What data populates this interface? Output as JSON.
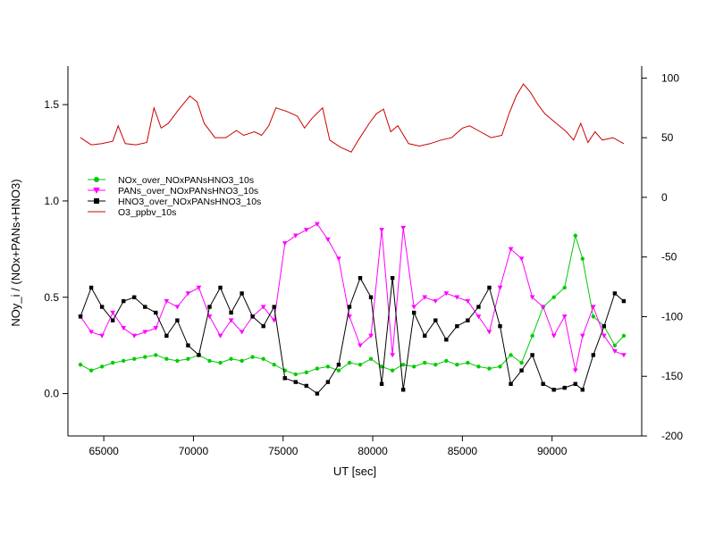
{
  "chart_data": {
    "type": "line",
    "xlabel": "UT [sec]",
    "ylabel_left": "NOy_i / (NOx+PANs+HNO3)",
    "ylabel_right": "",
    "xlim": [
      63000,
      95000
    ],
    "ylim_left": [
      -0.22,
      1.7
    ],
    "ylim_right": [
      -200,
      110
    ],
    "x_ticks": [
      65000,
      70000,
      75000,
      80000,
      85000,
      90000
    ],
    "x_tick_labels": [
      "65000",
      "70000",
      "75000",
      "80000",
      "85000",
      "90000"
    ],
    "y_left_ticks": [
      0.0,
      0.5,
      1.0,
      1.5
    ],
    "y_left_tick_labels": [
      "0.0",
      "0.5",
      "1.0",
      "1.5"
    ],
    "y_right_ticks": [
      100,
      50,
      0,
      -50,
      -100,
      -150,
      -200
    ],
    "y_right_tick_labels": [
      "100",
      "50",
      "0",
      "-50",
      "-100",
      "-150",
      "-200"
    ],
    "grid": false,
    "legend_position": "upper-left",
    "series": [
      {
        "name": "NOx_over_NOxPANsHNO3_10s",
        "axis": "left",
        "color": "#00cc00",
        "marker": "circle",
        "x": [
          63700,
          64300,
          64900,
          65500,
          66100,
          66700,
          67300,
          67900,
          68500,
          69100,
          69700,
          70300,
          70900,
          71500,
          72100,
          72700,
          73300,
          73900,
          74500,
          75100,
          75700,
          76300,
          76900,
          77500,
          78100,
          78700,
          79300,
          79900,
          80500,
          81100,
          81700,
          82300,
          82900,
          83500,
          84100,
          84700,
          85300,
          85900,
          86500,
          87100,
          87700,
          88300,
          88900,
          89500,
          90100,
          90700,
          91300,
          91700,
          92300,
          92900,
          93500,
          94000
        ],
        "y": [
          0.15,
          0.12,
          0.14,
          0.16,
          0.17,
          0.18,
          0.19,
          0.2,
          0.18,
          0.17,
          0.18,
          0.2,
          0.17,
          0.16,
          0.18,
          0.17,
          0.19,
          0.18,
          0.15,
          0.12,
          0.1,
          0.11,
          0.13,
          0.14,
          0.12,
          0.16,
          0.15,
          0.18,
          0.14,
          0.12,
          0.15,
          0.14,
          0.16,
          0.15,
          0.17,
          0.15,
          0.16,
          0.14,
          0.13,
          0.14,
          0.2,
          0.16,
          0.3,
          0.45,
          0.5,
          0.55,
          0.82,
          0.7,
          0.4,
          0.35,
          0.25,
          0.3
        ]
      },
      {
        "name": "PANs_over_NOxPANsHNO3_10s",
        "axis": "left",
        "color": "#ff00ff",
        "marker": "triangle-down",
        "x": [
          63700,
          64300,
          64900,
          65500,
          66100,
          66700,
          67300,
          67900,
          68500,
          69100,
          69700,
          70300,
          70900,
          71500,
          72100,
          72700,
          73300,
          73900,
          74500,
          75100,
          75700,
          76300,
          76900,
          77500,
          78100,
          78700,
          79300,
          79900,
          80500,
          81100,
          81700,
          82300,
          82900,
          83500,
          84100,
          84700,
          85300,
          85900,
          86500,
          87100,
          87700,
          88300,
          88900,
          89500,
          90100,
          90700,
          91300,
          91700,
          92300,
          92900,
          93500,
          94000
        ],
        "y": [
          0.4,
          0.32,
          0.3,
          0.42,
          0.34,
          0.3,
          0.32,
          0.34,
          0.48,
          0.45,
          0.52,
          0.55,
          0.4,
          0.3,
          0.38,
          0.32,
          0.4,
          0.45,
          0.38,
          0.78,
          0.82,
          0.85,
          0.88,
          0.8,
          0.7,
          0.4,
          0.25,
          0.3,
          0.85,
          0.2,
          0.86,
          0.45,
          0.5,
          0.48,
          0.52,
          0.5,
          0.48,
          0.4,
          0.32,
          0.55,
          0.75,
          0.7,
          0.5,
          0.45,
          0.3,
          0.4,
          0.12,
          0.3,
          0.45,
          0.3,
          0.22,
          0.2
        ]
      },
      {
        "name": "HNO3_over_NOxPANsHNO3_10s",
        "axis": "left",
        "color": "#000000",
        "marker": "square",
        "x": [
          63700,
          64300,
          64900,
          65500,
          66100,
          66700,
          67300,
          67900,
          68500,
          69100,
          69700,
          70300,
          70900,
          71500,
          72100,
          72700,
          73300,
          73900,
          74500,
          75100,
          75700,
          76300,
          76900,
          77500,
          78100,
          78700,
          79300,
          79900,
          80500,
          81100,
          81700,
          82300,
          82900,
          83500,
          84100,
          84700,
          85300,
          85900,
          86500,
          87100,
          87700,
          88300,
          88900,
          89500,
          90100,
          90700,
          91300,
          91700,
          92300,
          92900,
          93500,
          94000
        ],
        "y": [
          0.4,
          0.55,
          0.45,
          0.38,
          0.48,
          0.5,
          0.45,
          0.42,
          0.3,
          0.38,
          0.25,
          0.2,
          0.45,
          0.55,
          0.42,
          0.52,
          0.4,
          0.35,
          0.45,
          0.08,
          0.06,
          0.04,
          0.0,
          0.06,
          0.15,
          0.45,
          0.6,
          0.5,
          0.05,
          0.6,
          0.02,
          0.42,
          0.3,
          0.38,
          0.28,
          0.35,
          0.38,
          0.45,
          0.55,
          0.35,
          0.05,
          0.12,
          0.2,
          0.05,
          0.02,
          0.03,
          0.05,
          0.02,
          0.2,
          0.35,
          0.52,
          0.48
        ]
      },
      {
        "name": "O3_ppbv_10s",
        "axis": "right",
        "color": "#cc0000",
        "marker": "none",
        "x": [
          63700,
          64300,
          64900,
          65500,
          65800,
          66200,
          66800,
          67400,
          67800,
          68200,
          68600,
          69200,
          69800,
          70200,
          70600,
          71200,
          71800,
          72400,
          72800,
          73400,
          73800,
          74200,
          74600,
          75200,
          75800,
          76200,
          76600,
          77200,
          77600,
          78200,
          78800,
          79200,
          79800,
          80200,
          80600,
          81000,
          81400,
          82000,
          82600,
          83200,
          83800,
          84400,
          85000,
          85400,
          86000,
          86600,
          87200,
          87600,
          88000,
          88400,
          88800,
          89200,
          89600,
          90000,
          90400,
          90800,
          91200,
          91600,
          92000,
          92400,
          92800,
          93400,
          94000
        ],
        "y": [
          50,
          44,
          45,
          47,
          60,
          45,
          44,
          46,
          75,
          58,
          62,
          74,
          85,
          80,
          62,
          50,
          50,
          56,
          52,
          55,
          52,
          60,
          75,
          72,
          68,
          58,
          66,
          75,
          48,
          42,
          38,
          48,
          62,
          70,
          74,
          55,
          60,
          45,
          43,
          45,
          48,
          50,
          58,
          60,
          55,
          50,
          52,
          70,
          85,
          95,
          88,
          78,
          70,
          65,
          60,
          55,
          48,
          62,
          46,
          55,
          48,
          50,
          45
        ]
      }
    ]
  }
}
